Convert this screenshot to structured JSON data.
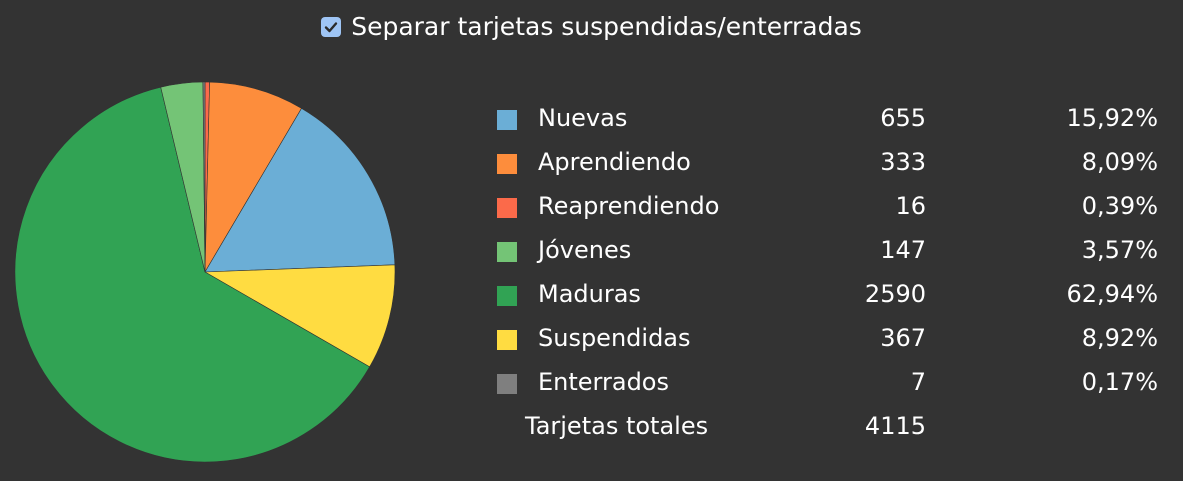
{
  "header": {
    "checkbox_label": "Separar tarjetas suspendidas/enterradas",
    "checked": true
  },
  "chart_data": {
    "type": "pie",
    "start_angle_deg": 0,
    "direction": "clockwise",
    "slices": [
      {
        "label": "Nuevas",
        "count": "655",
        "percent": "15,92%",
        "value": 655,
        "color": "#6baed6"
      },
      {
        "label": "Aprendiendo",
        "count": "333",
        "percent": "8,09%",
        "value": 333,
        "color": "#fd8d3c"
      },
      {
        "label": "Reaprendiendo",
        "count": "16",
        "percent": "0,39%",
        "value": 16,
        "color": "#fb6a4a"
      },
      {
        "label": "Jóvenes",
        "count": "147",
        "percent": "3,57%",
        "value": 147,
        "color": "#74c476"
      },
      {
        "label": "Maduras",
        "count": "2590",
        "percent": "62,94%",
        "value": 2590,
        "color": "#31a354"
      },
      {
        "label": "Suspendidas",
        "count": "367",
        "percent": "8,92%",
        "value": 367,
        "color": "#ffdc41"
      },
      {
        "label": "Enterrados",
        "count": "7",
        "percent": "0,17%",
        "value": 7,
        "color": "#7f7f7f"
      }
    ],
    "draw_order": [
      2,
      1,
      0,
      5,
      4,
      3,
      6
    ],
    "total": {
      "label": "Tarjetas totales",
      "value": "4115"
    }
  }
}
